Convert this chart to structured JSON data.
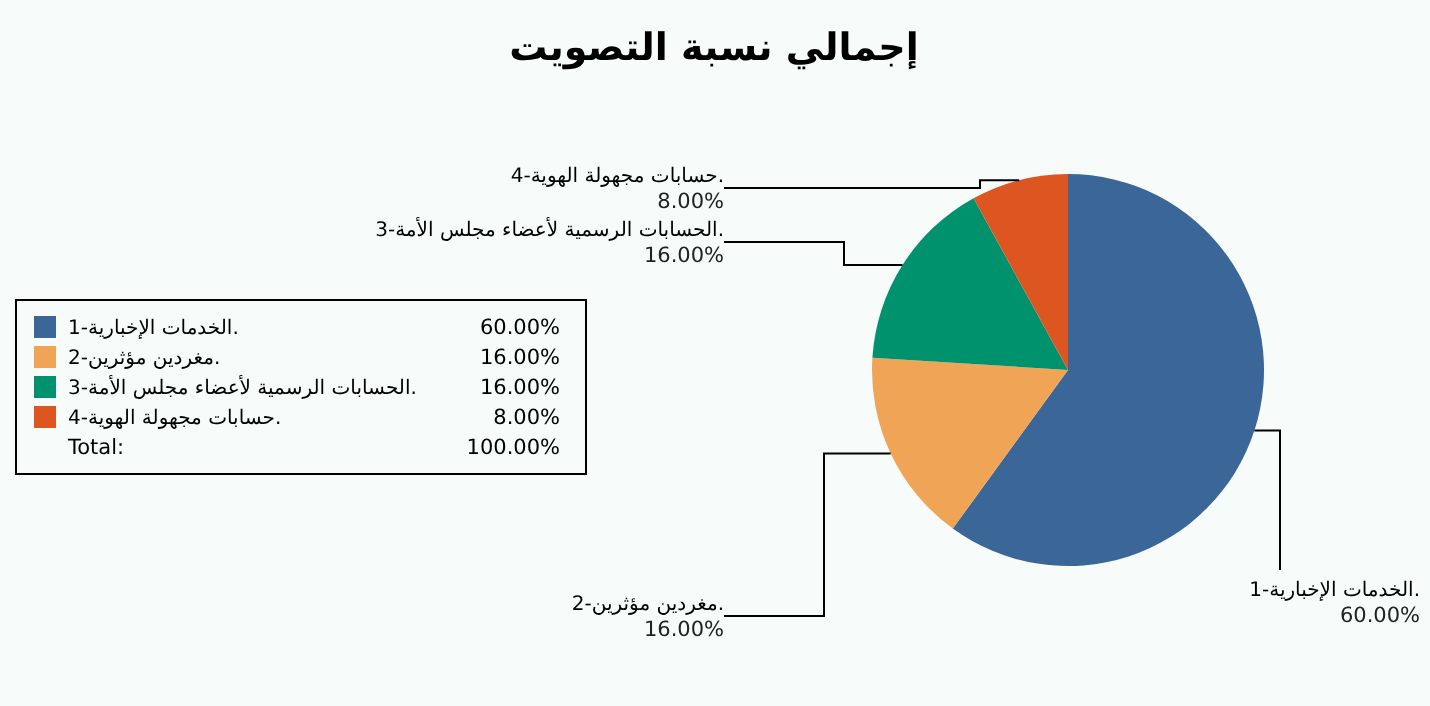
{
  "chart_data": {
    "type": "pie",
    "title": "إجمالي نسبة التصويت",
    "categories": [
      "1-الخدمات الإخبارية.",
      "2-مغردين مؤثرين.",
      "3-الحسابات الرسمية لأعضاء مجلس الأمة.",
      "4-حسابات مجهولة الهوية."
    ],
    "values": [
      60,
      16,
      16,
      8
    ],
    "value_labels": [
      "60.00%",
      "16.00%",
      "16.00%",
      "8.00%"
    ],
    "colors": [
      "#3a6698",
      "#f0a556",
      "#00926d",
      "#dd5622"
    ],
    "legend": "left",
    "annotations": [
      "Total:",
      "100.00%"
    ]
  }
}
